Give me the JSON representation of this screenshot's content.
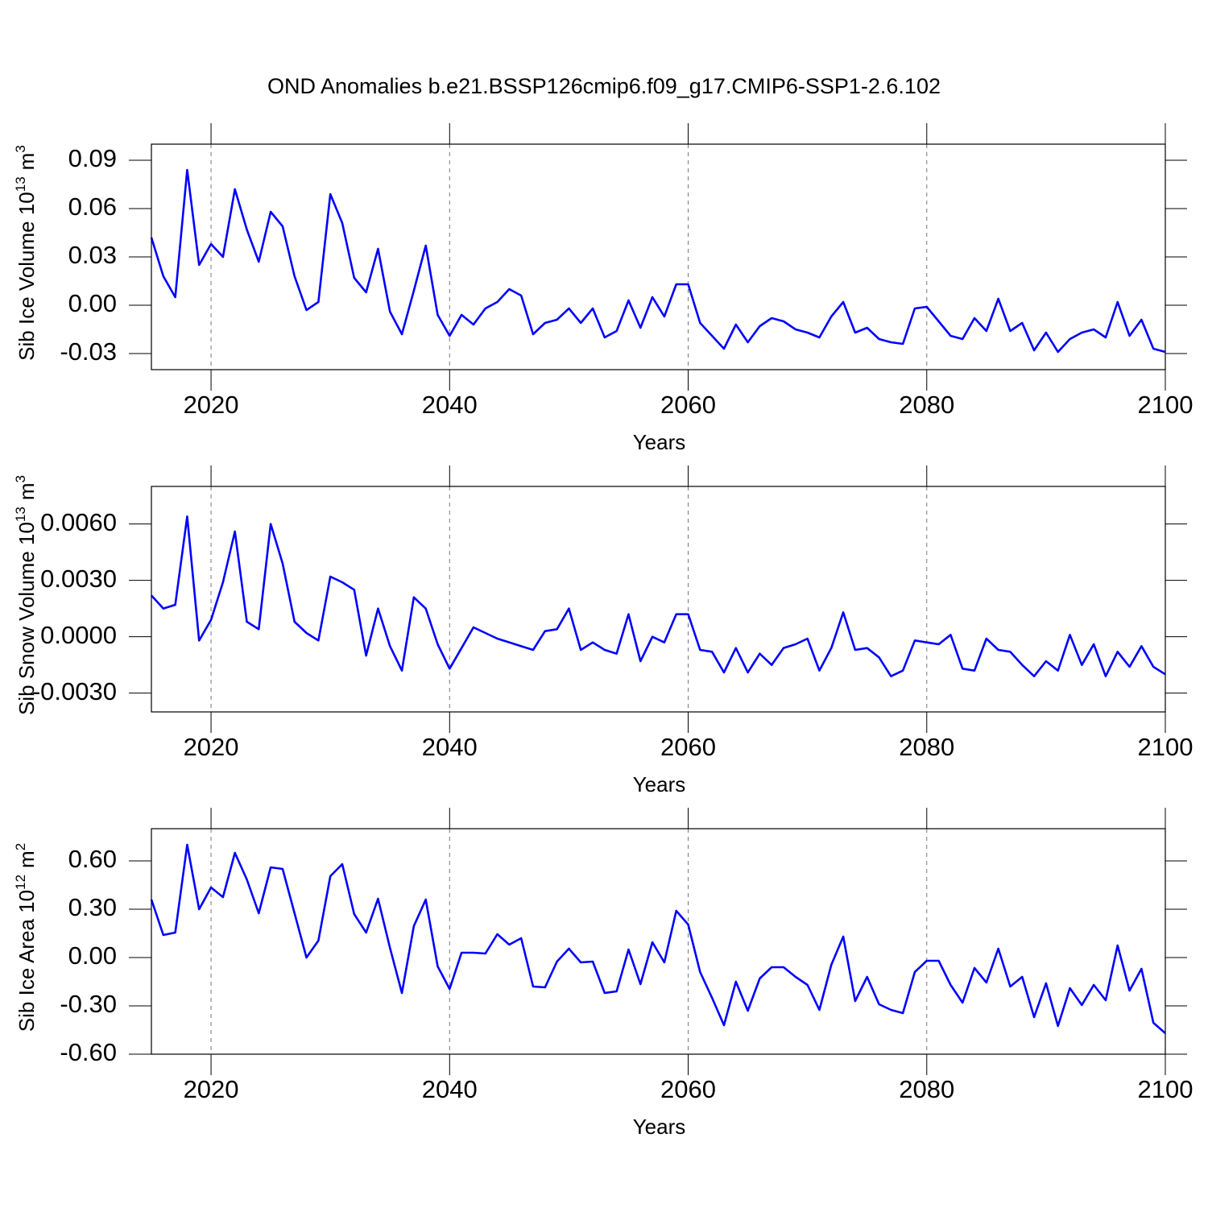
{
  "chart_data": [
    {
      "type": "line",
      "title": "OND Anomalies b.e21.BSSP126cmip6.f09_g17.CMIP6-SSP1-2.6.102",
      "xlabel": "Years",
      "ylabel": {
        "text": "Sib Ice Volume 10",
        "power": "13",
        "unit": "m",
        "unit_power": "3"
      },
      "xlim": [
        2015,
        2100
      ],
      "xticks": [
        2020,
        2040,
        2060,
        2080,
        2100
      ],
      "ylim": [
        -0.04,
        0.1
      ],
      "yticks": [
        0.09,
        0.06,
        0.03,
        {
          "value": 0,
          "label": "0.00"
        },
        -0.03
      ],
      "grid": "x",
      "color": "#0000ff",
      "x": [
        2015,
        2016,
        2017,
        2018,
        2019,
        2020,
        2021,
        2022,
        2023,
        2024,
        2025,
        2026,
        2027,
        2028,
        2029,
        2030,
        2031,
        2032,
        2033,
        2034,
        2035,
        2036,
        2037,
        2038,
        2039,
        2040,
        2041,
        2042,
        2043,
        2044,
        2045,
        2046,
        2047,
        2048,
        2049,
        2050,
        2051,
        2052,
        2053,
        2054,
        2055,
        2056,
        2057,
        2058,
        2059,
        2060,
        2061,
        2062,
        2063,
        2064,
        2065,
        2066,
        2067,
        2068,
        2069,
        2070,
        2071,
        2072,
        2073,
        2074,
        2075,
        2076,
        2077,
        2078,
        2079,
        2080,
        2081,
        2082,
        2083,
        2084,
        2085,
        2086,
        2087,
        2088,
        2089,
        2090,
        2091,
        2092,
        2093,
        2094,
        2095,
        2096,
        2097,
        2098,
        2099,
        2100
      ],
      "values": [
        0.042,
        0.018,
        0.005,
        0.084,
        0.025,
        0.038,
        0.03,
        0.072,
        0.047,
        0.027,
        0.058,
        0.049,
        0.018,
        -0.003,
        0.002,
        0.069,
        0.051,
        0.017,
        0.008,
        0.035,
        -0.004,
        -0.018,
        0.009,
        0.037,
        -0.006,
        -0.019,
        -0.006,
        -0.012,
        -0.002,
        0.002,
        0.01,
        0.006,
        -0.018,
        -0.011,
        -0.009,
        -0.002,
        -0.011,
        -0.002,
        -0.02,
        -0.016,
        0.003,
        -0.014,
        0.005,
        -0.007,
        0.013,
        0.013,
        -0.011,
        -0.019,
        -0.027,
        -0.012,
        -0.023,
        -0.013,
        -0.008,
        -0.01,
        -0.015,
        -0.017,
        -0.02,
        -0.007,
        0.002,
        -0.017,
        -0.014,
        -0.021,
        -0.023,
        -0.024,
        -0.002,
        -0.001,
        -0.01,
        -0.019,
        -0.021,
        -0.008,
        -0.016,
        0.004,
        -0.016,
        -0.011,
        -0.028,
        -0.017,
        -0.029,
        -0.021,
        -0.017,
        -0.015,
        -0.02,
        0.002,
        -0.019,
        -0.009,
        -0.027,
        -0.029
      ]
    },
    {
      "type": "line",
      "xlabel": "Years",
      "ylabel": {
        "text": "Sib Snow Volume 10",
        "power": "13",
        "unit": "m",
        "unit_power": "3"
      },
      "xlim": [
        2015,
        2100
      ],
      "xticks": [
        2020,
        2040,
        2060,
        2080,
        2100
      ],
      "ylim": [
        -0.004,
        0.008
      ],
      "yticks": [
        {
          "value": 0.006,
          "label": "0.0060"
        },
        {
          "value": 0.003,
          "label": "0.0030"
        },
        {
          "value": 0,
          "label": "0.0000"
        },
        {
          "value": -0.003,
          "label": "-0.0030"
        }
      ],
      "grid": "x",
      "color": "#0000ff",
      "x": [
        2015,
        2016,
        2017,
        2018,
        2019,
        2020,
        2021,
        2022,
        2023,
        2024,
        2025,
        2026,
        2027,
        2028,
        2029,
        2030,
        2031,
        2032,
        2033,
        2034,
        2035,
        2036,
        2037,
        2038,
        2039,
        2040,
        2041,
        2042,
        2043,
        2044,
        2045,
        2046,
        2047,
        2048,
        2049,
        2050,
        2051,
        2052,
        2053,
        2054,
        2055,
        2056,
        2057,
        2058,
        2059,
        2060,
        2061,
        2062,
        2063,
        2064,
        2065,
        2066,
        2067,
        2068,
        2069,
        2070,
        2071,
        2072,
        2073,
        2074,
        2075,
        2076,
        2077,
        2078,
        2079,
        2080,
        2081,
        2082,
        2083,
        2084,
        2085,
        2086,
        2087,
        2088,
        2089,
        2090,
        2091,
        2092,
        2093,
        2094,
        2095,
        2096,
        2097,
        2098,
        2099,
        2100
      ],
      "values": [
        0.0022,
        0.0015,
        0.0017,
        0.0064,
        -0.0002,
        0.0009,
        0.0029,
        0.0056,
        0.0008,
        0.0004,
        0.006,
        0.0039,
        0.0008,
        0.0002,
        -0.0002,
        0.0032,
        0.0029,
        0.0025,
        -0.001,
        0.0015,
        -0.0005,
        -0.0018,
        0.0021,
        0.0015,
        -0.0004,
        -0.0017,
        -0.0006,
        0.0005,
        0.0002,
        -0.0001,
        -0.0003,
        -0.0005,
        -0.0007,
        0.0003,
        0.0004,
        0.0015,
        -0.0007,
        -0.0003,
        -0.0007,
        -0.0009,
        0.0012,
        -0.0013,
        0.0,
        -0.0003,
        0.0012,
        0.0012,
        -0.0007,
        -0.0008,
        -0.0019,
        -0.0006,
        -0.0019,
        -0.0009,
        -0.0015,
        -0.0006,
        -0.0004,
        -0.0001,
        -0.0018,
        -0.0006,
        0.0013,
        -0.0007,
        -0.0006,
        -0.0011,
        -0.0021,
        -0.0018,
        -0.0002,
        -0.0003,
        -0.0004,
        0.0001,
        -0.0017,
        -0.0018,
        -0.0001,
        -0.0007,
        -0.0008,
        -0.0015,
        -0.0021,
        -0.0013,
        -0.0018,
        0.0001,
        -0.0015,
        -0.0004,
        -0.0021,
        -0.0008,
        -0.0016,
        -0.0005,
        -0.0016,
        -0.002
      ]
    },
    {
      "type": "line",
      "xlabel": "Years",
      "ylabel": {
        "text": "Sib Ice Area 10",
        "power": "12",
        "unit": "m",
        "unit_power": "2"
      },
      "xlim": [
        2015,
        2100
      ],
      "xticks": [
        2020,
        2040,
        2060,
        2080,
        2100
      ],
      "ylim": [
        -0.6,
        0.8
      ],
      "yticks": [
        {
          "value": 0.6,
          "label": "0.60"
        },
        {
          "value": 0.3,
          "label": "0.30"
        },
        {
          "value": 0,
          "label": "0.00"
        },
        {
          "value": -0.3,
          "label": "-0.30"
        },
        {
          "value": -0.6,
          "label": "-0.60"
        }
      ],
      "grid": "x",
      "color": "#0000ff",
      "x": [
        2015,
        2016,
        2017,
        2018,
        2019,
        2020,
        2021,
        2022,
        2023,
        2024,
        2025,
        2026,
        2027,
        2028,
        2029,
        2030,
        2031,
        2032,
        2033,
        2034,
        2035,
        2036,
        2037,
        2038,
        2039,
        2040,
        2041,
        2042,
        2043,
        2044,
        2045,
        2046,
        2047,
        2048,
        2049,
        2050,
        2051,
        2052,
        2053,
        2054,
        2055,
        2056,
        2057,
        2058,
        2059,
        2060,
        2061,
        2062,
        2063,
        2064,
        2065,
        2066,
        2067,
        2068,
        2069,
        2070,
        2071,
        2072,
        2073,
        2074,
        2075,
        2076,
        2077,
        2078,
        2079,
        2080,
        2081,
        2082,
        2083,
        2084,
        2085,
        2086,
        2087,
        2088,
        2089,
        2090,
        2091,
        2092,
        2093,
        2094,
        2095,
        2096,
        2097,
        2098,
        2099,
        2100
      ],
      "values": [
        0.36,
        0.14,
        0.155,
        0.7,
        0.3,
        0.435,
        0.375,
        0.65,
        0.485,
        0.275,
        0.56,
        0.55,
        0.275,
        0.0,
        0.105,
        0.505,
        0.58,
        0.27,
        0.155,
        0.365,
        0.06,
        -0.22,
        0.195,
        0.36,
        -0.055,
        -0.195,
        0.03,
        0.03,
        0.025,
        0.145,
        0.08,
        0.12,
        -0.18,
        -0.185,
        -0.025,
        0.055,
        -0.03,
        -0.025,
        -0.22,
        -0.21,
        0.05,
        -0.165,
        0.095,
        -0.03,
        0.29,
        0.205,
        -0.09,
        -0.25,
        -0.42,
        -0.15,
        -0.33,
        -0.13,
        -0.06,
        -0.06,
        -0.12,
        -0.17,
        -0.325,
        -0.045,
        0.13,
        -0.27,
        -0.12,
        -0.29,
        -0.325,
        -0.345,
        -0.09,
        -0.02,
        -0.02,
        -0.17,
        -0.28,
        -0.065,
        -0.155,
        0.055,
        -0.18,
        -0.12,
        -0.37,
        -0.16,
        -0.425,
        -0.19,
        -0.295,
        -0.17,
        -0.265,
        0.075,
        -0.205,
        -0.07,
        -0.405,
        -0.47
      ]
    }
  ]
}
